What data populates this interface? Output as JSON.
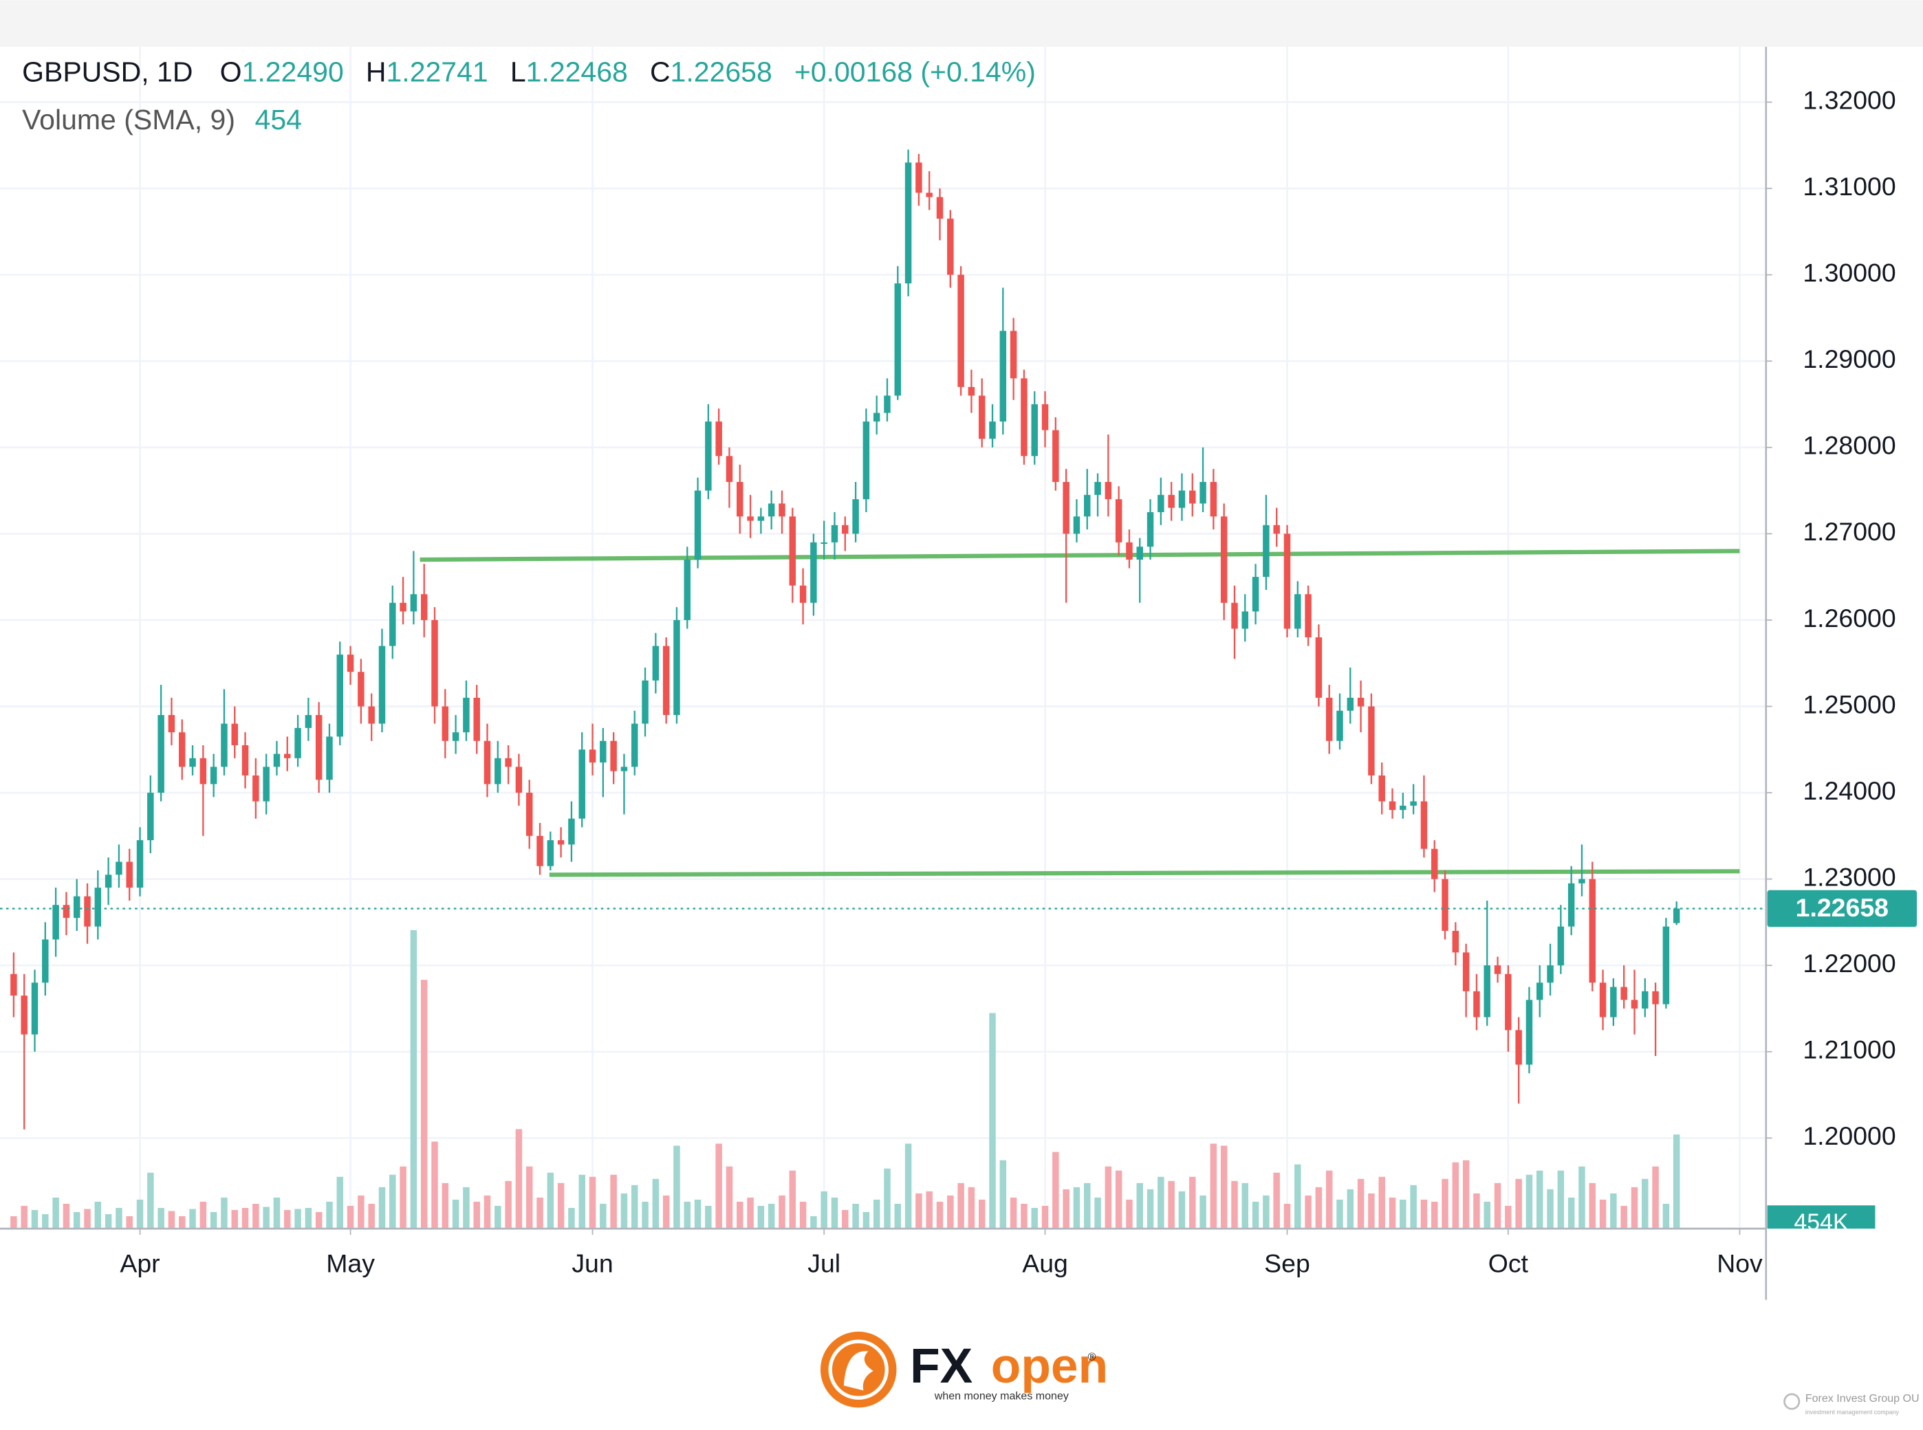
{
  "chart_data": {
    "type": "candlestick",
    "symbol": "GBPUSD, 1D",
    "ohlc_legend": [
      {
        "label": "O",
        "value": "1.22490"
      },
      {
        "label": "H",
        "value": "1.22741"
      },
      {
        "label": "L",
        "value": "1.22468"
      },
      {
        "label": "C",
        "value": "1.22658"
      }
    ],
    "change": "+0.00168 (+0.14%)",
    "up_color": "#26a69a",
    "down_color": "#ef5350",
    "grid": true,
    "xlim": [
      -1.3,
      166.5
    ],
    "xticks": [
      {
        "value": 12,
        "label": "Apr"
      },
      {
        "value": 32,
        "label": "May"
      },
      {
        "value": 55,
        "label": "Jun"
      },
      {
        "value": 77,
        "label": "Jul"
      },
      {
        "value": 98,
        "label": "Aug"
      },
      {
        "value": 121,
        "label": "Sep"
      },
      {
        "value": 142,
        "label": "Oct"
      },
      {
        "value": 164,
        "label": "Nov"
      }
    ],
    "ylim": [
      1.1895,
      1.3264
    ],
    "yticks": [
      {
        "value": 1.2,
        "label": "1.20000"
      },
      {
        "value": 1.21,
        "label": "1.21000"
      },
      {
        "value": 1.22,
        "label": "1.22000"
      },
      {
        "value": 1.23,
        "label": "1.23000"
      },
      {
        "value": 1.24,
        "label": "1.24000"
      },
      {
        "value": 1.25,
        "label": "1.25000"
      },
      {
        "value": 1.26,
        "label": "1.26000"
      },
      {
        "value": 1.27,
        "label": "1.27000"
      },
      {
        "value": 1.28,
        "label": "1.28000"
      },
      {
        "value": 1.29,
        "label": "1.29000"
      },
      {
        "value": 1.3,
        "label": "1.30000"
      },
      {
        "value": 1.31,
        "label": "1.31000"
      },
      {
        "value": 1.32,
        "label": "1.32000"
      }
    ],
    "last_price": {
      "value": 1.22658,
      "label": "1.22658"
    },
    "levels": [
      {
        "x": [
          38.6,
          164.0
        ],
        "y": [
          1.267,
          1.268
        ],
        "color": "#4caf50"
      },
      {
        "x": [
          50.9,
          164.0
        ],
        "y": [
          1.2305,
          1.2309
        ],
        "color": "#4caf50"
      }
    ],
    "open": [
      1.219,
      1.2165,
      1.212,
      1.218,
      1.223,
      1.227,
      1.2255,
      1.228,
      1.2245,
      1.229,
      1.2305,
      1.232,
      1.229,
      1.2345,
      1.24,
      1.249,
      1.247,
      1.243,
      1.244,
      1.241,
      1.243,
      1.248,
      1.2455,
      1.242,
      1.239,
      1.243,
      1.2445,
      1.244,
      1.2475,
      1.249,
      1.2415,
      1.2465,
      1.256,
      1.254,
      1.25,
      1.248,
      1.257,
      1.262,
      1.261,
      1.263,
      1.26,
      1.25,
      1.246,
      1.247,
      1.251,
      1.246,
      1.241,
      1.244,
      1.243,
      1.24,
      1.235,
      1.2315,
      1.2345,
      1.234,
      1.237,
      1.245,
      1.2435,
      1.246,
      1.2425,
      1.243,
      1.248,
      1.253,
      1.257,
      1.249,
      1.26,
      1.267,
      1.275,
      1.283,
      1.279,
      1.276,
      1.272,
      1.2715,
      1.272,
      1.2735,
      1.272,
      1.264,
      1.262,
      1.269,
      1.269,
      1.271,
      1.27,
      1.274,
      1.283,
      1.284,
      1.286,
      1.299,
      1.313,
      1.3095,
      1.309,
      1.3065,
      1.3,
      1.287,
      1.286,
      1.281,
      1.283,
      1.2935,
      1.288,
      1.279,
      1.285,
      1.282,
      1.276,
      1.27,
      1.272,
      1.2745,
      1.276,
      1.274,
      1.269,
      1.267,
      1.2685,
      1.2725,
      1.2745,
      1.273,
      1.275,
      1.2735,
      1.276,
      1.272,
      1.262,
      1.259,
      1.261,
      1.265,
      1.271,
      1.27,
      1.259,
      1.263,
      1.258,
      1.251,
      1.246,
      1.2495,
      1.251,
      1.25,
      1.242,
      1.239,
      1.238,
      1.2385,
      1.239,
      1.2335,
      1.23,
      1.224,
      1.2215,
      1.217,
      1.214,
      1.22,
      1.219,
      1.2125,
      1.2085,
      1.216,
      1.218,
      1.22,
      1.2245,
      1.2295,
      1.23,
      1.218,
      1.214,
      1.2175,
      1.216,
      1.215,
      1.217,
      1.2155,
      1.2249
    ],
    "high": [
      1.2215,
      1.219,
      1.2195,
      1.225,
      1.229,
      1.2285,
      1.23,
      1.2295,
      1.231,
      1.2325,
      1.234,
      1.2335,
      1.236,
      1.242,
      1.2525,
      1.251,
      1.2485,
      1.2455,
      1.2455,
      1.2445,
      1.252,
      1.25,
      1.247,
      1.244,
      1.2445,
      1.246,
      1.2465,
      1.249,
      1.251,
      1.2505,
      1.248,
      1.2575,
      1.257,
      1.2555,
      1.2515,
      1.259,
      1.264,
      1.265,
      1.268,
      1.2665,
      1.2615,
      1.252,
      1.249,
      1.253,
      1.2525,
      1.248,
      1.246,
      1.2455,
      1.2445,
      1.2415,
      1.2365,
      1.2355,
      1.236,
      1.239,
      1.247,
      1.248,
      1.2475,
      1.247,
      1.2445,
      1.2495,
      1.2545,
      1.2585,
      1.258,
      1.2615,
      1.2685,
      1.2765,
      1.285,
      1.2845,
      1.28,
      1.278,
      1.2745,
      1.273,
      1.275,
      1.275,
      1.273,
      1.266,
      1.27,
      1.2715,
      1.2725,
      1.272,
      1.276,
      1.2845,
      1.286,
      1.288,
      1.301,
      1.3145,
      1.314,
      1.312,
      1.31,
      1.3075,
      1.301,
      1.289,
      1.288,
      1.285,
      1.2985,
      1.295,
      1.289,
      1.2865,
      1.2865,
      1.2835,
      1.2775,
      1.274,
      1.2775,
      1.277,
      1.2815,
      1.2755,
      1.2705,
      1.2695,
      1.274,
      1.2765,
      1.276,
      1.277,
      1.277,
      1.28,
      1.2775,
      1.2735,
      1.264,
      1.263,
      1.2665,
      1.2745,
      1.273,
      1.271,
      1.2645,
      1.264,
      1.2595,
      1.2525,
      1.2515,
      1.2545,
      1.253,
      1.2515,
      1.2435,
      1.2405,
      1.24,
      1.241,
      1.242,
      1.2345,
      1.231,
      1.225,
      1.2225,
      1.219,
      1.2275,
      1.221,
      1.22,
      1.214,
      1.2175,
      1.22,
      1.2225,
      1.227,
      1.2315,
      1.234,
      1.232,
      1.2195,
      1.2185,
      1.22,
      1.2195,
      1.2185,
      1.218,
      1.2255,
      1.22741
    ],
    "low": [
      1.214,
      1.201,
      1.21,
      1.2165,
      1.221,
      1.2235,
      1.224,
      1.2225,
      1.223,
      1.227,
      1.229,
      1.2275,
      1.228,
      1.233,
      1.239,
      1.2455,
      1.2415,
      1.242,
      1.235,
      1.2395,
      1.242,
      1.244,
      1.2405,
      1.237,
      1.2375,
      1.242,
      1.2425,
      1.243,
      1.246,
      1.24,
      1.24,
      1.2455,
      1.2525,
      1.248,
      1.246,
      1.247,
      1.2555,
      1.2595,
      1.2595,
      1.258,
      1.248,
      1.244,
      1.2445,
      1.246,
      1.2445,
      1.2395,
      1.24,
      1.241,
      1.2385,
      1.2335,
      1.2305,
      1.231,
      1.2325,
      1.232,
      1.236,
      1.242,
      1.2395,
      1.241,
      1.2375,
      1.242,
      1.2465,
      1.2515,
      1.248,
      1.248,
      1.259,
      1.266,
      1.274,
      1.278,
      1.273,
      1.27,
      1.2695,
      1.27,
      1.2705,
      1.27,
      1.262,
      1.2595,
      1.2605,
      1.267,
      1.267,
      1.268,
      1.269,
      1.2725,
      1.2815,
      1.283,
      1.2855,
      1.2975,
      1.308,
      1.3075,
      1.304,
      1.2985,
      1.286,
      1.284,
      1.28,
      1.28,
      1.2815,
      1.2855,
      1.278,
      1.278,
      1.28,
      1.275,
      1.262,
      1.269,
      1.2705,
      1.272,
      1.272,
      1.2675,
      1.266,
      1.262,
      1.267,
      1.271,
      1.2715,
      1.2715,
      1.272,
      1.2725,
      1.2705,
      1.26,
      1.2555,
      1.2575,
      1.2595,
      1.2635,
      1.2685,
      1.258,
      1.258,
      1.257,
      1.25,
      1.2445,
      1.245,
      1.248,
      1.247,
      1.241,
      1.2375,
      1.237,
      1.237,
      1.2375,
      1.2325,
      1.2285,
      1.223,
      1.22,
      1.214,
      1.2125,
      1.213,
      1.218,
      1.21,
      1.204,
      1.2075,
      1.214,
      1.2165,
      1.219,
      1.2235,
      1.228,
      1.217,
      1.2125,
      1.213,
      1.215,
      1.212,
      1.214,
      1.2095,
      1.215,
      1.22468
    ],
    "close": [
      1.2165,
      1.212,
      1.218,
      1.223,
      1.227,
      1.2255,
      1.228,
      1.2245,
      1.229,
      1.2305,
      1.232,
      1.229,
      1.2345,
      1.24,
      1.249,
      1.247,
      1.243,
      1.244,
      1.241,
      1.243,
      1.248,
      1.2455,
      1.242,
      1.239,
      1.243,
      1.2445,
      1.244,
      1.2475,
      1.249,
      1.2415,
      1.2465,
      1.256,
      1.254,
      1.25,
      1.248,
      1.257,
      1.262,
      1.261,
      1.263,
      1.26,
      1.25,
      1.246,
      1.247,
      1.251,
      1.246,
      1.241,
      1.244,
      1.243,
      1.24,
      1.235,
      1.2315,
      1.2345,
      1.234,
      1.237,
      1.245,
      1.2435,
      1.246,
      1.2425,
      1.243,
      1.248,
      1.253,
      1.257,
      1.249,
      1.26,
      1.267,
      1.275,
      1.283,
      1.279,
      1.276,
      1.272,
      1.2715,
      1.272,
      1.2735,
      1.272,
      1.264,
      1.262,
      1.269,
      1.269,
      1.271,
      1.27,
      1.274,
      1.283,
      1.284,
      1.286,
      1.299,
      1.313,
      1.3095,
      1.309,
      1.3065,
      1.3,
      1.287,
      1.286,
      1.281,
      1.283,
      1.2935,
      1.288,
      1.279,
      1.285,
      1.282,
      1.276,
      1.27,
      1.272,
      1.2745,
      1.276,
      1.274,
      1.269,
      1.267,
      1.2685,
      1.2725,
      1.2745,
      1.273,
      1.275,
      1.2735,
      1.276,
      1.272,
      1.262,
      1.259,
      1.261,
      1.265,
      1.271,
      1.27,
      1.259,
      1.263,
      1.258,
      1.251,
      1.246,
      1.2495,
      1.251,
      1.25,
      1.242,
      1.239,
      1.238,
      1.2385,
      1.239,
      1.2335,
      1.23,
      1.224,
      1.2215,
      1.217,
      1.214,
      1.22,
      1.219,
      1.2125,
      1.2085,
      1.216,
      1.218,
      1.22,
      1.2245,
      1.2295,
      1.23,
      1.218,
      1.214,
      1.2175,
      1.216,
      1.215,
      1.217,
      1.2155,
      1.2245,
      1.22658
    ],
    "volume": {
      "name": "Volume (SMA, 9)",
      "last_label": "454K",
      "ylim": [
        0,
        5700
      ],
      "up_color": "#9fd6cf",
      "down_color": "#f5a8ad",
      "values": [
        60,
        110,
        90,
        70,
        150,
        120,
        80,
        95,
        130,
        70,
        100,
        60,
        140,
        270,
        100,
        85,
        60,
        95,
        130,
        80,
        150,
        90,
        100,
        120,
        105,
        150,
        90,
        95,
        100,
        80,
        130,
        250,
        110,
        160,
        120,
        200,
        260,
        300,
        1440,
        1200,
        420,
        220,
        140,
        200,
        130,
        160,
        110,
        230,
        480,
        300,
        150,
        270,
        220,
        100,
        260,
        250,
        120,
        260,
        170,
        210,
        130,
        240,
        160,
        400,
        130,
        140,
        110,
        410,
        300,
        130,
        150,
        110,
        120,
        160,
        280,
        130,
        60,
        180,
        150,
        90,
        120,
        80,
        140,
        290,
        120,
        410,
        170,
        180,
        130,
        160,
        220,
        200,
        140,
        1040,
        330,
        150,
        120,
        100,
        110,
        370,
        190,
        200,
        220,
        150,
        300,
        280,
        140,
        220,
        190,
        250,
        230,
        180,
        250,
        160,
        410,
        400,
        230,
        220,
        130,
        160,
        270,
        120,
        310,
        160,
        200,
        280,
        140,
        190,
        240,
        170,
        250,
        150,
        140,
        210,
        140,
        130,
        240,
        320,
        330,
        170,
        130,
        220,
        110,
        240,
        260,
        280,
        190,
        280,
        150,
        300,
        220,
        140,
        170,
        110,
        200,
        240,
        300,
        120,
        454
      ]
    }
  },
  "footer": {
    "brand_fx": "FX",
    "brand_open": "open",
    "registered": "®",
    "tagline": "when money makes money",
    "company": "Forex Invest Group OU",
    "company_sub": "investment management company"
  }
}
